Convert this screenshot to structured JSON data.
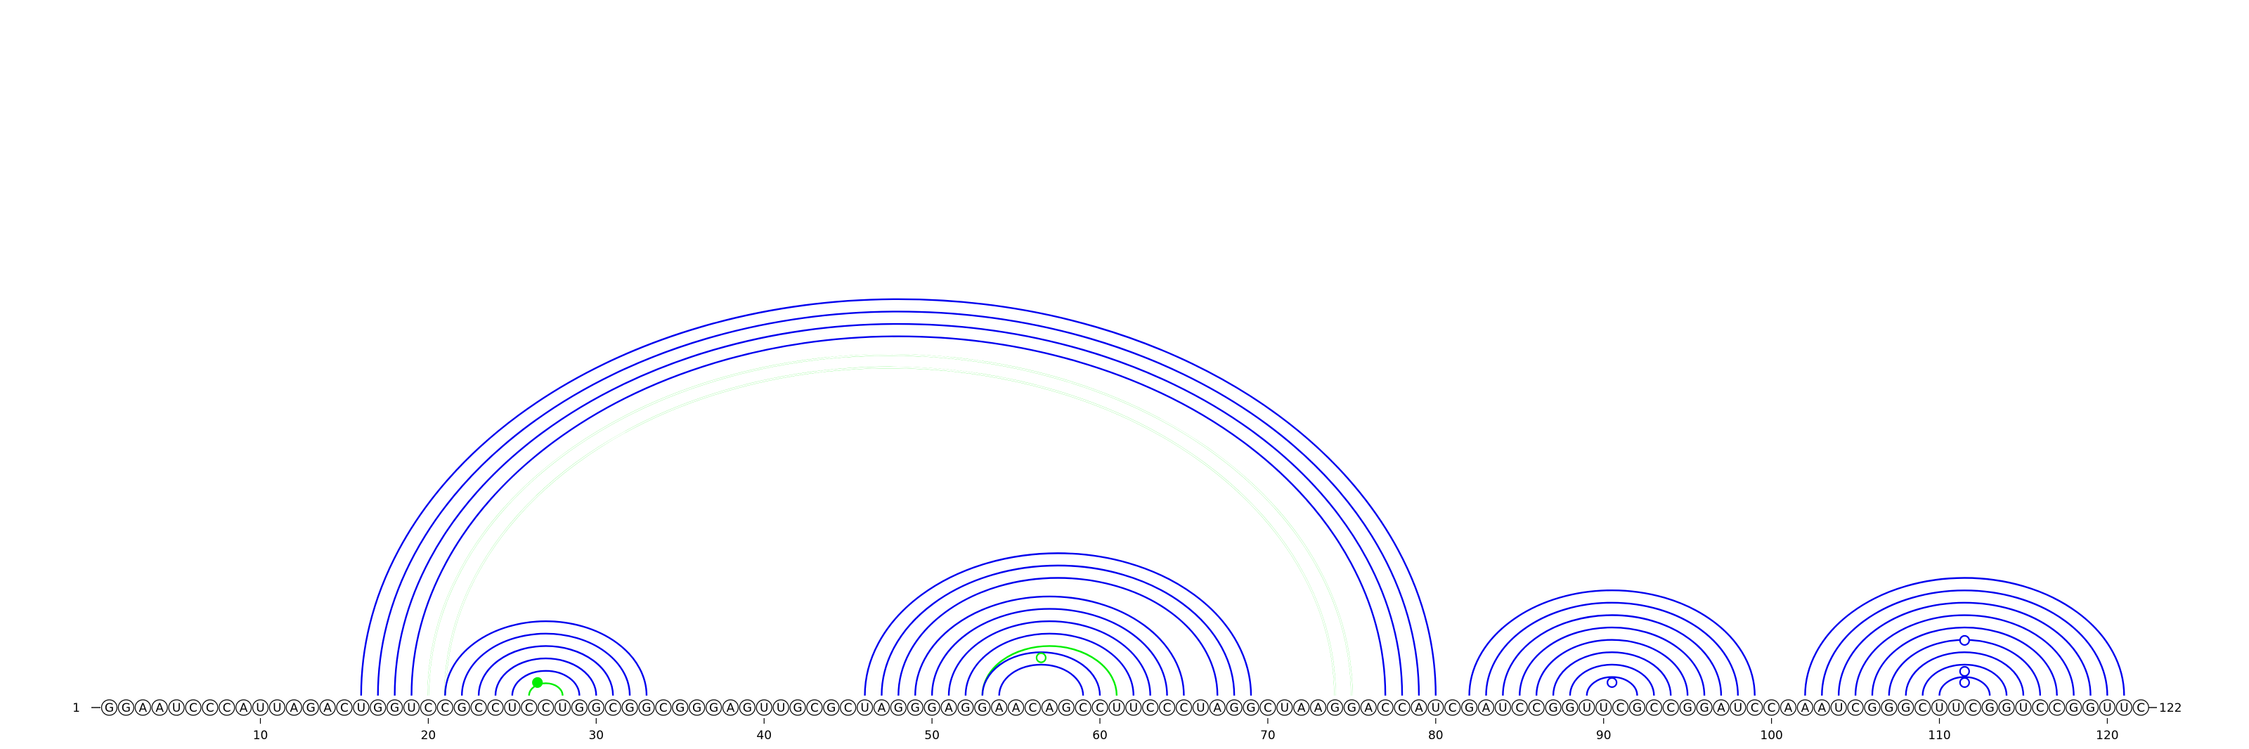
{
  "sequence": "GGAAUCCCAUUAGACUGGUCCGCCUCCUGGCGGCGGGAGUUGCGCUAGGGAGGAACAGCCUUCCCUAGGCUAAGGACCAUCGAUCCGGUUCGCCGGAUCCAAAUCGGGCUUCGGUCCGGUUC",
  "start_label": "1",
  "end_label": "122",
  "ticks": [
    {
      "pos": 10,
      "label": "10"
    },
    {
      "pos": 20,
      "label": "20"
    },
    {
      "pos": 30,
      "label": "30"
    },
    {
      "pos": 40,
      "label": "40"
    },
    {
      "pos": 50,
      "label": "50"
    },
    {
      "pos": 60,
      "label": "60"
    },
    {
      "pos": 70,
      "label": "70"
    },
    {
      "pos": 80,
      "label": "80"
    },
    {
      "pos": 90,
      "label": "90"
    },
    {
      "pos": 100,
      "label": "100"
    },
    {
      "pos": 110,
      "label": "110"
    },
    {
      "pos": 120,
      "label": "120"
    }
  ],
  "colors": {
    "blue": "#0000ee",
    "green": "#00ee00"
  },
  "arcs": [
    {
      "i": 16,
      "j": 80,
      "color": "blue"
    },
    {
      "i": 17,
      "j": 79,
      "color": "blue"
    },
    {
      "i": 18,
      "j": 78,
      "color": "blue"
    },
    {
      "i": 19,
      "j": 77,
      "color": "blue"
    },
    {
      "i": 20,
      "j": 75,
      "color": "green",
      "double": true
    },
    {
      "i": 21,
      "j": 74,
      "color": "green",
      "double": true
    },
    {
      "i": 21,
      "j": 33,
      "color": "blue"
    },
    {
      "i": 22,
      "j": 32,
      "color": "blue"
    },
    {
      "i": 23,
      "j": 31,
      "color": "blue"
    },
    {
      "i": 24,
      "j": 30,
      "color": "blue"
    },
    {
      "i": 25,
      "j": 29,
      "color": "blue"
    },
    {
      "i": 26,
      "j": 28,
      "color": "green"
    },
    {
      "i": 46,
      "j": 69,
      "color": "blue"
    },
    {
      "i": 47,
      "j": 68,
      "color": "blue"
    },
    {
      "i": 48,
      "j": 67,
      "color": "blue"
    },
    {
      "i": 49,
      "j": 65,
      "color": "blue"
    },
    {
      "i": 50,
      "j": 64,
      "color": "blue"
    },
    {
      "i": 51,
      "j": 63,
      "color": "blue"
    },
    {
      "i": 52,
      "j": 62,
      "color": "blue"
    },
    {
      "i": 53,
      "j": 61,
      "color": "green"
    },
    {
      "i": 53,
      "j": 60,
      "color": "blue"
    },
    {
      "i": 54,
      "j": 59,
      "color": "blue"
    },
    {
      "i": 82,
      "j": 99,
      "color": "blue"
    },
    {
      "i": 83,
      "j": 98,
      "color": "blue"
    },
    {
      "i": 84,
      "j": 97,
      "color": "blue"
    },
    {
      "i": 85,
      "j": 96,
      "color": "blue"
    },
    {
      "i": 86,
      "j": 95,
      "color": "blue"
    },
    {
      "i": 87,
      "j": 94,
      "color": "blue"
    },
    {
      "i": 88,
      "j": 93,
      "color": "blue"
    },
    {
      "i": 89,
      "j": 92,
      "color": "blue"
    },
    {
      "i": 102,
      "j": 121,
      "color": "blue"
    },
    {
      "i": 103,
      "j": 120,
      "color": "blue"
    },
    {
      "i": 104,
      "j": 119,
      "color": "blue"
    },
    {
      "i": 105,
      "j": 118,
      "color": "blue"
    },
    {
      "i": 106,
      "j": 117,
      "color": "blue"
    },
    {
      "i": 107,
      "j": 116,
      "color": "blue"
    },
    {
      "i": 108,
      "j": 115,
      "color": "blue"
    },
    {
      "i": 109,
      "j": 114,
      "color": "blue"
    },
    {
      "i": 110,
      "j": 113,
      "color": "blue"
    }
  ],
  "markers": [
    {
      "pos": 26.5,
      "height": 1,
      "color": "green",
      "filled": true
    },
    {
      "pos": 56.5,
      "height": 3,
      "color": "green",
      "filled": false
    },
    {
      "pos": 90.5,
      "height": 1,
      "color": "blue",
      "filled": false
    },
    {
      "pos": 111.5,
      "height": 1,
      "color": "blue",
      "filled": false
    },
    {
      "pos": 111.5,
      "height": 1.9,
      "color": "blue",
      "filled": false
    },
    {
      "pos": 111.5,
      "height": 4.4,
      "color": "blue",
      "filled": false
    }
  ]
}
